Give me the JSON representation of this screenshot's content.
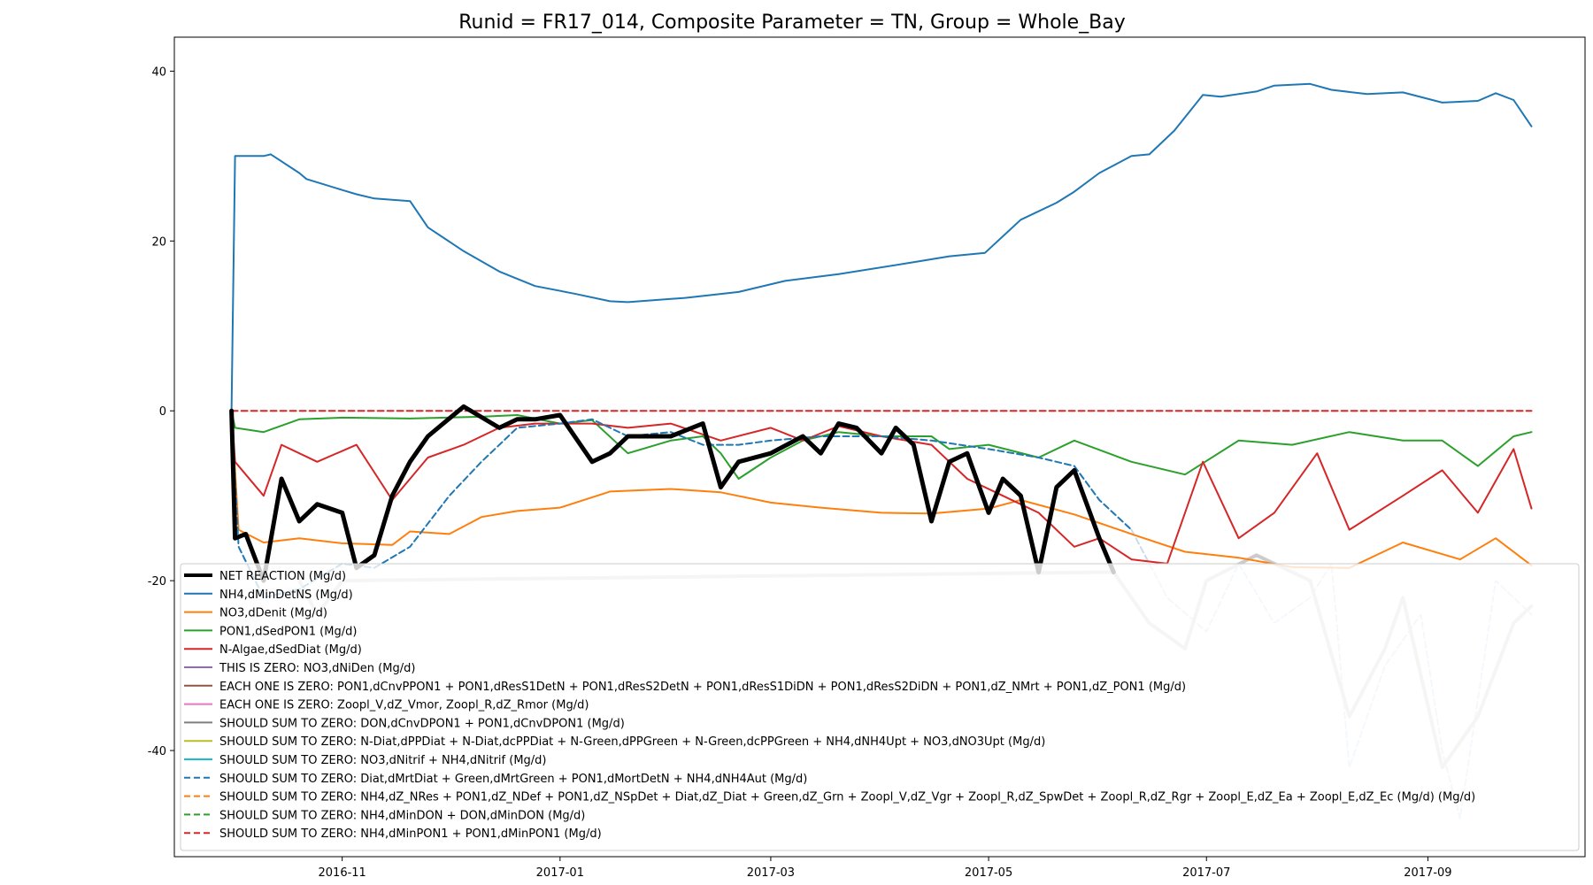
{
  "chart_data": {
    "type": "line",
    "title": "Runid = FR17_014, Composite Parameter = TN, Group = Whole_Bay",
    "xlabel": "",
    "ylabel": "",
    "x_range": [
      "2016-09-15",
      "2017-10-15"
    ],
    "ylim": [
      -52.5,
      44
    ],
    "x_ticks": [
      "2016-11",
      "2017-01",
      "2017-03",
      "2017-05",
      "2017-07",
      "2017-09"
    ],
    "y_ticks": [
      40,
      20,
      0,
      -20,
      -40
    ],
    "grid": false,
    "legend_position": "lower center",
    "legend_entries": [
      {
        "label": "NET REACTION (Mg/d)",
        "color": "#000000",
        "dash": false,
        "width": 4
      },
      {
        "label": "NH4,dMinDetNS (Mg/d)",
        "color": "#1f77b4",
        "dash": false,
        "width": 2
      },
      {
        "label": "NO3,dDenit (Mg/d)",
        "color": "#ff7f0e",
        "dash": false,
        "width": 2
      },
      {
        "label": "PON1,dSedPON1 (Mg/d)",
        "color": "#2ca02c",
        "dash": false,
        "width": 2
      },
      {
        "label": "N-Algae,dSedDiat (Mg/d)",
        "color": "#d62728",
        "dash": false,
        "width": 2
      },
      {
        "label": "THIS IS ZERO: NO3,dNiDen (Mg/d)",
        "color": "#9467bd",
        "dash": false,
        "width": 2
      },
      {
        "label": "EACH ONE IS ZERO: PON1,dCnvPPON1 + PON1,dResS1DetN + PON1,dResS2DetN + PON1,dResS1DiDN + PON1,dResS2DiDN + PON1,dZ_NMrt + PON1,dZ_PON1 (Mg/d)",
        "color": "#8c564b",
        "dash": false,
        "width": 2
      },
      {
        "label": "EACH ONE IS ZERO: Zoopl_V,dZ_Vmor, Zoopl_R,dZ_Rmor (Mg/d)",
        "color": "#e377c2",
        "dash": false,
        "width": 2
      },
      {
        "label": "SHOULD SUM TO ZERO: DON,dCnvDPON1 + PON1,dCnvDPON1 (Mg/d)",
        "color": "#7f7f7f",
        "dash": false,
        "width": 2
      },
      {
        "label": "SHOULD SUM TO ZERO: N-Diat,dPPDiat + N-Diat,dcPPDiat + N-Green,dPPGreen + N-Green,dcPPGreen + NH4,dNH4Upt + NO3,dNO3Upt (Mg/d)",
        "color": "#bcbd22",
        "dash": false,
        "width": 2
      },
      {
        "label": "SHOULD SUM TO ZERO: NO3,dNitrif + NH4,dNitrif (Mg/d)",
        "color": "#17becf",
        "dash": false,
        "width": 2
      },
      {
        "label": "SHOULD SUM TO ZERO: Diat,dMrtDiat + Green,dMrtGreen + PON1,dMortDetN + NH4,dNH4Aut (Mg/d)",
        "color": "#1f77b4",
        "dash": true,
        "width": 2
      },
      {
        "label": "SHOULD SUM TO ZERO: NH4,dZ_NRes + PON1,dZ_NDef + PON1,dZ_NSpDet + Diat,dZ_Diat + Green,dZ_Grn + Zoopl_V,dZ_Vgr + Zoopl_R,dZ_SpwDet + Zoopl_R,dZ_Rgr + Zoopl_E,dZ_Ea + Zoopl_E,dZ_Ec (Mg/d) (Mg/d)",
        "color": "#ff7f0e",
        "dash": true,
        "width": 2
      },
      {
        "label": "SHOULD SUM TO ZERO: NH4,dMinDON + DON,dMinDON (Mg/d)",
        "color": "#2ca02c",
        "dash": true,
        "width": 2
      },
      {
        "label": "SHOULD SUM TO ZERO: NH4,dMinPON1 + PON1,dMinPON1 (Mg/d)",
        "color": "#d62728",
        "dash": true,
        "width": 2
      }
    ],
    "series": [
      {
        "key": "nh4_reg",
        "color": "#1f77b4",
        "width": 2,
        "dash": false,
        "z": 1,
        "x": [
          "2016-10-01",
          "2016-10-02",
          "2016-10-10",
          "2016-10-12",
          "2016-10-20",
          "2016-10-22",
          "2016-11-01",
          "2016-11-05",
          "2016-11-10",
          "2016-11-20",
          "2016-11-25",
          "2016-12-05",
          "2016-12-15",
          "2016-12-25",
          "2017-01-05",
          "2017-01-15",
          "2017-01-20",
          "2017-02-05",
          "2017-02-20",
          "2017-03-05",
          "2017-03-20",
          "2017-04-10",
          "2017-04-20",
          "2017-04-30",
          "2017-05-10",
          "2017-05-20",
          "2017-05-25",
          "2017-06-01",
          "2017-06-10",
          "2017-06-15",
          "2017-06-22",
          "2017-06-30",
          "2017-07-05",
          "2017-07-15",
          "2017-07-20",
          "2017-07-30",
          "2017-08-05",
          "2017-08-15",
          "2017-08-25",
          "2017-09-05",
          "2017-09-15",
          "2017-09-20",
          "2017-09-25",
          "2017-09-30"
        ],
        "y": [
          0,
          30,
          30,
          30.2,
          28,
          27.3,
          26,
          25.5,
          25,
          24.7,
          21.6,
          18.8,
          16.4,
          14.7,
          13.8,
          12.9,
          12.8,
          13.3,
          14,
          15.3,
          16.1,
          17.5,
          18.2,
          18.6,
          22.5,
          24.5,
          25.8,
          28,
          30,
          30.2,
          33,
          37.2,
          37,
          37.6,
          38.3,
          38.5,
          37.8,
          37.3,
          37.5,
          36.3,
          36.5,
          37.4,
          36.6,
          33.5
        ]
      },
      {
        "key": "no3_denit",
        "color": "#ff7f0e",
        "width": 2,
        "dash": false,
        "z": 1,
        "x": [
          "2016-10-01",
          "2016-10-03",
          "2016-10-10",
          "2016-10-20",
          "2016-11-01",
          "2016-11-15",
          "2016-11-20",
          "2016-12-01",
          "2016-12-10",
          "2016-12-20",
          "2017-01-01",
          "2017-01-15",
          "2017-02-01",
          "2017-02-15",
          "2017-03-01",
          "2017-03-15",
          "2017-04-01",
          "2017-04-15",
          "2017-05-01",
          "2017-05-10",
          "2017-05-25",
          "2017-06-10",
          "2017-06-25",
          "2017-07-10",
          "2017-07-25",
          "2017-08-10",
          "2017-08-25",
          "2017-09-10",
          "2017-09-20",
          "2017-09-30"
        ],
        "y": [
          0,
          -14,
          -15.5,
          -15,
          -15.6,
          -15.8,
          -14.2,
          -14.5,
          -12.5,
          -11.8,
          -11.4,
          -9.5,
          -9.2,
          -9.6,
          -10.8,
          -11.4,
          -12,
          -12.1,
          -11.5,
          -10.5,
          -12.2,
          -14.5,
          -16.6,
          -17.3,
          -18.4,
          -18.5,
          -15.5,
          -17.5,
          -15,
          -18.2
        ]
      },
      {
        "key": "pon1_sed",
        "color": "#2ca02c",
        "width": 2,
        "dash": false,
        "z": 1,
        "x": [
          "2016-10-01",
          "2016-10-02",
          "2016-10-10",
          "2016-10-20",
          "2016-11-01",
          "2016-11-20",
          "2016-12-10",
          "2016-12-20",
          "2017-01-01",
          "2017-01-10",
          "2017-01-20",
          "2017-02-01",
          "2017-02-10",
          "2017-02-15",
          "2017-02-20",
          "2017-03-01",
          "2017-03-10",
          "2017-03-20",
          "2017-04-01",
          "2017-04-15",
          "2017-04-20",
          "2017-05-01",
          "2017-05-15",
          "2017-05-25",
          "2017-06-10",
          "2017-06-25",
          "2017-07-10",
          "2017-07-25",
          "2017-08-10",
          "2017-08-25",
          "2017-09-05",
          "2017-09-15",
          "2017-09-25",
          "2017-09-30"
        ],
        "y": [
          0,
          -2,
          -2.5,
          -1,
          -0.8,
          -0.9,
          -0.7,
          -0.5,
          -1.5,
          -1.1,
          -5,
          -3.5,
          -3,
          -5,
          -8,
          -5.5,
          -3.5,
          -2.5,
          -3,
          -3,
          -4.5,
          -4,
          -5.5,
          -3.5,
          -6,
          -7.5,
          -3.5,
          -4,
          -2.5,
          -3.5,
          -3.5,
          -6.5,
          -3,
          -2.5
        ]
      },
      {
        "key": "nalgae_sed",
        "color": "#d62728",
        "width": 2,
        "dash": false,
        "z": 1,
        "x": [
          "2016-10-01",
          "2016-10-02",
          "2016-10-10",
          "2016-10-15",
          "2016-10-25",
          "2016-11-05",
          "2016-11-15",
          "2016-11-25",
          "2016-12-05",
          "2016-12-15",
          "2016-12-25",
          "2017-01-10",
          "2017-01-20",
          "2017-02-01",
          "2017-02-15",
          "2017-03-01",
          "2017-03-10",
          "2017-03-20",
          "2017-04-01",
          "2017-04-15",
          "2017-04-25",
          "2017-05-05",
          "2017-05-15",
          "2017-05-25",
          "2017-06-01",
          "2017-06-10",
          "2017-06-20",
          "2017-06-30",
          "2017-07-10",
          "2017-07-20",
          "2017-08-01",
          "2017-08-10",
          "2017-08-25",
          "2017-09-05",
          "2017-09-15",
          "2017-09-25",
          "2017-09-30"
        ],
        "y": [
          0,
          -6,
          -10,
          -4,
          -6,
          -4,
          -10.5,
          -5.5,
          -4,
          -2,
          -1.5,
          -1.5,
          -2,
          -1.5,
          -3.5,
          -2,
          -3.5,
          -1.8,
          -3,
          -4,
          -8,
          -10,
          -12,
          -16,
          -15,
          -17.5,
          -18,
          -6,
          -15,
          -12,
          -5,
          -14,
          -10,
          -7,
          -12,
          -4.5,
          -11.5
        ]
      },
      {
        "key": "pon1_mort",
        "color": "#1f77b4",
        "width": 2,
        "dash": true,
        "z": 1,
        "x": [
          "2016-10-01",
          "2016-10-03",
          "2016-10-10",
          "2016-10-20",
          "2016-11-01",
          "2016-11-10",
          "2016-11-20",
          "2016-12-01",
          "2016-12-10",
          "2016-12-20",
          "2017-01-01",
          "2017-01-10",
          "2017-01-20",
          "2017-02-01",
          "2017-02-10",
          "2017-02-20",
          "2017-03-01",
          "2017-03-15",
          "2017-04-01",
          "2017-04-15",
          "2017-05-01",
          "2017-05-15",
          "2017-05-25",
          "2017-06-01",
          "2017-06-10"
        ],
        "y": [
          0,
          -16,
          -22,
          -21,
          -18,
          -18.5,
          -16,
          -10,
          -6,
          -2,
          -1.5,
          -1,
          -3,
          -2.5,
          -4,
          -4,
          -3.5,
          -3,
          -3,
          -3.5,
          -4.5,
          -5.5,
          -6.5,
          -10.5,
          -14
        ]
      },
      {
        "key": "pon1_mort_faded",
        "color": "#c6dcef",
        "width": 2,
        "dash": true,
        "z": 0,
        "x": [
          "2017-06-10",
          "2017-06-20",
          "2017-07-01",
          "2017-07-10",
          "2017-07-20",
          "2017-07-30",
          "2017-08-05",
          "2017-08-10",
          "2017-08-20",
          "2017-08-30",
          "2017-09-05",
          "2017-09-10",
          "2017-09-20",
          "2017-09-30"
        ],
        "y": [
          -14,
          -22,
          -26,
          -18,
          -25,
          -22,
          -18,
          -42,
          -30,
          -24,
          -40,
          -48,
          -20,
          -24
        ]
      },
      {
        "key": "net_faded",
        "color": "#cccccc",
        "width": 4,
        "dash": false,
        "z": 0,
        "x": [
          "2016-10-20",
          "2016-10-25",
          "2016-11-01",
          "2017-06-05",
          "2017-06-15",
          "2017-06-25",
          "2017-07-01",
          "2017-07-15",
          "2017-07-30",
          "2017-08-10",
          "2017-08-20",
          "2017-08-25",
          "2017-09-05",
          "2017-09-15",
          "2017-09-25",
          "2017-09-30"
        ],
        "y": [
          -20,
          -24,
          -20,
          -19,
          -25,
          -28,
          -20,
          -17,
          -20,
          -36,
          -28,
          -22,
          -42,
          -36,
          -25,
          -23
        ]
      },
      {
        "key": "net_reaction",
        "color": "#000000",
        "width": 5,
        "dash": false,
        "z": 2,
        "x": [
          "2016-10-01",
          "2016-10-02",
          "2016-10-05",
          "2016-10-10",
          "2016-10-15",
          "2016-10-20",
          "2016-10-25",
          "2016-11-01",
          "2016-11-05",
          "2016-11-10",
          "2016-11-15",
          "2016-11-20",
          "2016-11-25",
          "2016-12-05",
          "2016-12-15",
          "2016-12-20",
          "2016-12-25",
          "2017-01-01",
          "2017-01-10",
          "2017-01-15",
          "2017-01-20",
          "2017-02-01",
          "2017-02-10",
          "2017-02-15",
          "2017-02-20",
          "2017-03-01",
          "2017-03-10",
          "2017-03-15",
          "2017-03-20",
          "2017-03-25",
          "2017-04-01",
          "2017-04-05",
          "2017-04-10",
          "2017-04-15",
          "2017-04-20",
          "2017-04-25",
          "2017-05-01",
          "2017-05-05",
          "2017-05-10",
          "2017-05-15",
          "2017-05-20",
          "2017-05-25",
          "2017-06-01",
          "2017-06-05"
        ],
        "y": [
          0,
          -15,
          -14.5,
          -20,
          -8,
          -13,
          -11,
          -12,
          -18.5,
          -17,
          -10,
          -6,
          -3,
          0.5,
          -2,
          -1,
          -1,
          -0.5,
          -6,
          -5,
          -3,
          -3,
          -1.5,
          -9,
          -6,
          -5,
          -3,
          -5,
          -1.5,
          -2,
          -5,
          -2,
          -4,
          -13,
          -6,
          -5,
          -12,
          -8,
          -10,
          -19,
          -9,
          -7,
          -15,
          -19
        ]
      },
      {
        "key": "zero_lines",
        "color": "#d62728",
        "width": 2,
        "dash": true,
        "z": 1,
        "x": [
          "2016-10-01",
          "2017-09-30"
        ],
        "y": [
          0,
          0
        ]
      }
    ]
  }
}
